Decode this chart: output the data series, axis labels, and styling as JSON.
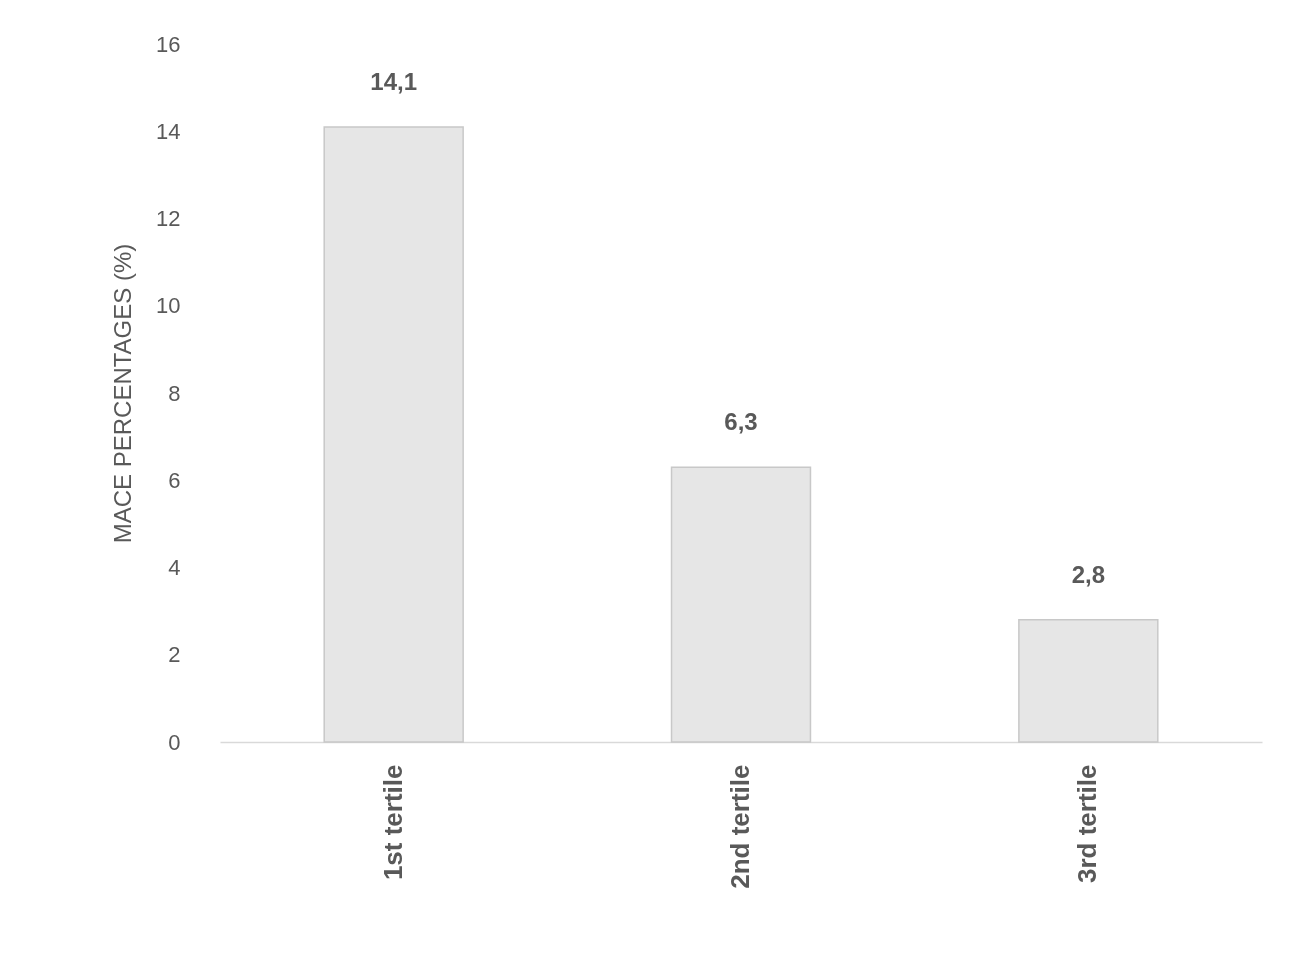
{
  "chart_data": {
    "type": "bar",
    "ylabel": "MACE PERCENTAGES (%)",
    "categories": [
      "1st tertile",
      "2nd tertile",
      "3rd tertile"
    ],
    "values": [
      14.1,
      6.3,
      2.8
    ],
    "value_labels": [
      "14,1",
      "6,3",
      "2,8"
    ],
    "color": "#e6e6e6",
    "ylim": [
      0,
      16
    ],
    "yticks": [
      0,
      2,
      4,
      6,
      8,
      10,
      12,
      14,
      16
    ]
  }
}
